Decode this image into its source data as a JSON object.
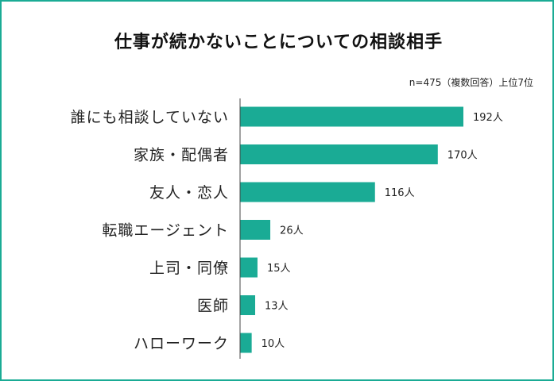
{
  "chart_data": {
    "type": "bar",
    "orientation": "horizontal",
    "title": "仕事が続かないことについての相談相手",
    "note": "n=475（複数回答）上位7位",
    "categories": [
      "誰にも相談していない",
      "家族・配偶者",
      "友人・恋人",
      "転職エージェント",
      "上司・同僚",
      "医師",
      "ハローワーク"
    ],
    "values": [
      192,
      170,
      116,
      26,
      15,
      13,
      10
    ],
    "value_labels": [
      "192人",
      "170人",
      "116人",
      "26人",
      "15人",
      "13人",
      "10人"
    ],
    "xlim": [
      0,
      192
    ],
    "grid": false,
    "legend": "none"
  },
  "colors": {
    "bar": "#1aab95",
    "frame": "#1aab95",
    "axis": "#444444"
  }
}
